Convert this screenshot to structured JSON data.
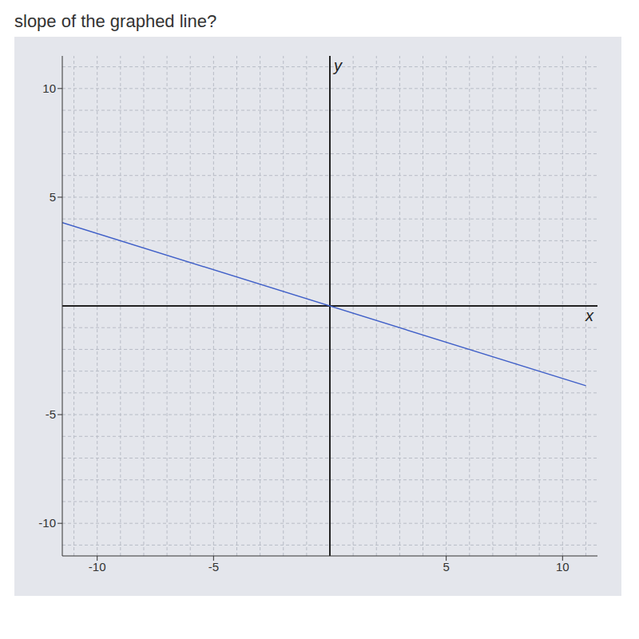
{
  "chart_data": {
    "type": "line",
    "title": "slope of the graphed line?",
    "x_label": "x",
    "y_label": "y",
    "x": [
      -11.5,
      11
    ],
    "values": [
      3.83,
      -3.67
    ],
    "color": "#3f5fc8",
    "xlim": [
      -11.5,
      11.5
    ],
    "ylim": [
      -11.5,
      11.5
    ],
    "xticks": [
      -10,
      -5,
      5,
      10
    ],
    "yticks": [
      -10,
      -5,
      5,
      10
    ],
    "grid": true
  }
}
